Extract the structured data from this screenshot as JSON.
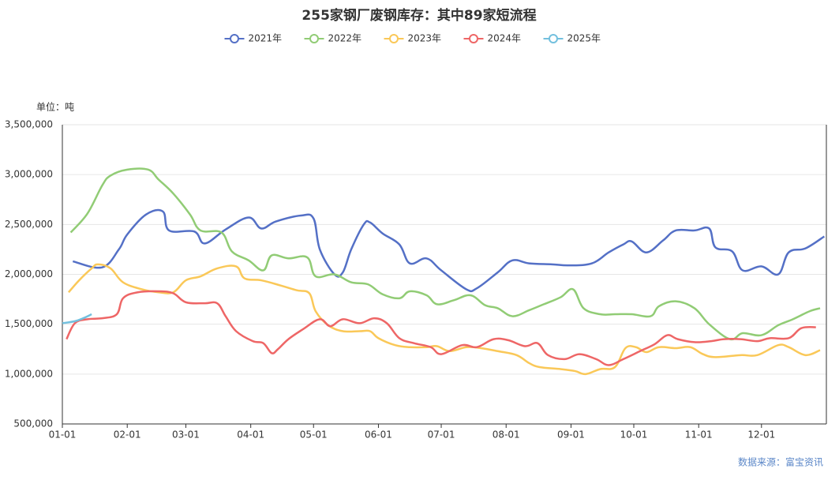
{
  "chart_data": {
    "type": "line",
    "title": "255家钢厂废钢库存：其中89家短流程",
    "unit_label": "单位：吨",
    "source": "数据来源：富宝资讯",
    "xlim": [
      "01-01",
      "12-31"
    ],
    "xticks": [
      "01-01",
      "02-01",
      "03-01",
      "04-01",
      "05-01",
      "06-01",
      "07-01",
      "08-01",
      "09-01",
      "10-01",
      "11-01",
      "12-01"
    ],
    "ylim": [
      500000,
      3500000
    ],
    "yticks": [
      {
        "value": 500000,
        "label": "500,000"
      },
      {
        "value": 1000000,
        "label": "1,000,000"
      },
      {
        "value": 1500000,
        "label": "1,500,000"
      },
      {
        "value": 2000000,
        "label": "2,000,000"
      },
      {
        "value": 2500000,
        "label": "2,500,000"
      },
      {
        "value": 3000000,
        "label": "3,000,000"
      },
      {
        "value": 3500000,
        "label": "3,500,000"
      }
    ],
    "grid": true,
    "series": [
      {
        "name": "2021年",
        "color": "#5470c6",
        "x": [
          "01-06",
          "01-20",
          "01-28",
          "02-01",
          "02-10",
          "02-18",
          "02-21",
          "03-05",
          "03-10",
          "03-20",
          "03-31",
          "04-06",
          "04-13",
          "04-25",
          "05-01",
          "05-04",
          "05-11",
          "05-15",
          "05-19",
          "05-25",
          "05-28",
          "06-03",
          "06-11",
          "06-16",
          "06-24",
          "07-01",
          "07-13",
          "07-18",
          "07-28",
          "08-04",
          "08-12",
          "08-23",
          "08-31",
          "09-11",
          "09-19",
          "09-26",
          "09-30",
          "10-07",
          "10-15",
          "10-21",
          "10-30",
          "11-06",
          "11-09",
          "11-17",
          "11-22",
          "12-01",
          "12-09",
          "12-14",
          "12-22",
          "12-31"
        ],
        "values": [
          2130000,
          2070000,
          2250000,
          2400000,
          2600000,
          2630000,
          2440000,
          2430000,
          2310000,
          2450000,
          2570000,
          2460000,
          2530000,
          2590000,
          2560000,
          2250000,
          2000000,
          2020000,
          2250000,
          2500000,
          2520000,
          2410000,
          2300000,
          2110000,
          2160000,
          2040000,
          1850000,
          1860000,
          2020000,
          2140000,
          2110000,
          2100000,
          2090000,
          2110000,
          2220000,
          2300000,
          2330000,
          2220000,
          2340000,
          2440000,
          2440000,
          2460000,
          2270000,
          2230000,
          2040000,
          2080000,
          2000000,
          2220000,
          2260000,
          2380000
        ]
      },
      {
        "name": "2022年",
        "color": "#91cc75",
        "x": [
          "01-05",
          "01-13",
          "01-20",
          "01-24",
          "02-01",
          "02-11",
          "02-16",
          "02-23",
          "03-03",
          "03-08",
          "03-18",
          "03-23",
          "03-31",
          "04-07",
          "04-11",
          "04-19",
          "04-28",
          "05-02",
          "05-11",
          "05-19",
          "05-27",
          "06-03",
          "06-11",
          "06-16",
          "06-24",
          "06-29",
          "07-07",
          "07-15",
          "07-22",
          "07-28",
          "08-04",
          "08-12",
          "08-19",
          "08-27",
          "09-02",
          "09-07",
          "09-15",
          "09-22",
          "09-30",
          "10-09",
          "10-13",
          "10-21",
          "10-30",
          "11-06",
          "11-16",
          "11-22",
          "12-01",
          "12-09",
          "12-16",
          "12-24",
          "12-29"
        ],
        "values": [
          2420000,
          2610000,
          2890000,
          2990000,
          3050000,
          3050000,
          2950000,
          2810000,
          2600000,
          2440000,
          2420000,
          2230000,
          2140000,
          2040000,
          2190000,
          2160000,
          2170000,
          1980000,
          2000000,
          1920000,
          1900000,
          1800000,
          1760000,
          1830000,
          1790000,
          1700000,
          1740000,
          1790000,
          1690000,
          1660000,
          1580000,
          1640000,
          1700000,
          1770000,
          1850000,
          1660000,
          1600000,
          1600000,
          1600000,
          1580000,
          1680000,
          1730000,
          1660000,
          1500000,
          1350000,
          1410000,
          1390000,
          1490000,
          1550000,
          1630000,
          1660000
        ]
      },
      {
        "name": "2023年",
        "color": "#fac858",
        "x": [
          "01-04",
          "01-09",
          "01-15",
          "01-18",
          "01-24",
          "01-30",
          "02-08",
          "02-16",
          "02-23",
          "03-01",
          "03-08",
          "03-16",
          "03-25",
          "03-29",
          "04-06",
          "04-15",
          "04-23",
          "04-29",
          "05-02",
          "05-08",
          "05-15",
          "05-23",
          "05-28",
          "06-01",
          "06-09",
          "06-16",
          "06-24",
          "06-29",
          "07-05",
          "07-13",
          "07-20",
          "07-28",
          "08-06",
          "08-12",
          "08-17",
          "08-27",
          "09-03",
          "09-08",
          "09-15",
          "09-22",
          "09-27",
          "10-02",
          "10-07",
          "10-13",
          "10-21",
          "10-28",
          "11-03",
          "11-09",
          "11-21",
          "11-29",
          "12-09",
          "12-14",
          "12-22",
          "12-29"
        ],
        "values": [
          1820000,
          1940000,
          2060000,
          2100000,
          2060000,
          1920000,
          1850000,
          1820000,
          1820000,
          1940000,
          1980000,
          2060000,
          2080000,
          1960000,
          1940000,
          1890000,
          1840000,
          1810000,
          1630000,
          1490000,
          1430000,
          1430000,
          1430000,
          1360000,
          1290000,
          1270000,
          1270000,
          1280000,
          1230000,
          1270000,
          1260000,
          1230000,
          1190000,
          1110000,
          1070000,
          1050000,
          1030000,
          1000000,
          1050000,
          1070000,
          1260000,
          1270000,
          1220000,
          1270000,
          1260000,
          1270000,
          1200000,
          1170000,
          1190000,
          1190000,
          1290000,
          1270000,
          1190000,
          1240000
        ]
      },
      {
        "name": "2024年",
        "color": "#ee6666",
        "x": [
          "01-03",
          "01-07",
          "01-13",
          "01-20",
          "01-27",
          "01-30",
          "02-06",
          "02-16",
          "02-23",
          "03-01",
          "03-10",
          "03-16",
          "03-20",
          "03-25",
          "04-02",
          "04-07",
          "04-11",
          "04-14",
          "04-19",
          "04-26",
          "05-04",
          "05-09",
          "05-15",
          "05-23",
          "05-30",
          "06-05",
          "06-11",
          "06-18",
          "06-26",
          "07-01",
          "07-11",
          "07-18",
          "07-26",
          "08-02",
          "08-10",
          "08-16",
          "08-21",
          "08-29",
          "09-05",
          "09-13",
          "09-19",
          "09-26",
          "10-04",
          "10-11",
          "10-17",
          "10-22",
          "10-30",
          "11-07",
          "11-13",
          "11-21",
          "11-29",
          "12-05",
          "12-14",
          "12-20",
          "12-27"
        ],
        "values": [
          1350000,
          1510000,
          1550000,
          1560000,
          1600000,
          1760000,
          1820000,
          1830000,
          1810000,
          1720000,
          1710000,
          1710000,
          1580000,
          1430000,
          1330000,
          1310000,
          1210000,
          1250000,
          1350000,
          1450000,
          1550000,
          1480000,
          1550000,
          1510000,
          1560000,
          1510000,
          1360000,
          1310000,
          1270000,
          1200000,
          1290000,
          1270000,
          1350000,
          1340000,
          1280000,
          1310000,
          1190000,
          1150000,
          1200000,
          1150000,
          1090000,
          1150000,
          1230000,
          1300000,
          1390000,
          1350000,
          1320000,
          1330000,
          1350000,
          1350000,
          1330000,
          1360000,
          1360000,
          1460000,
          1470000
        ]
      },
      {
        "name": "2025年",
        "color": "#73c0de",
        "x": [
          "01-01",
          "01-07",
          "01-11",
          "01-15"
        ],
        "values": [
          1510000,
          1530000,
          1560000,
          1600000
        ]
      }
    ]
  }
}
